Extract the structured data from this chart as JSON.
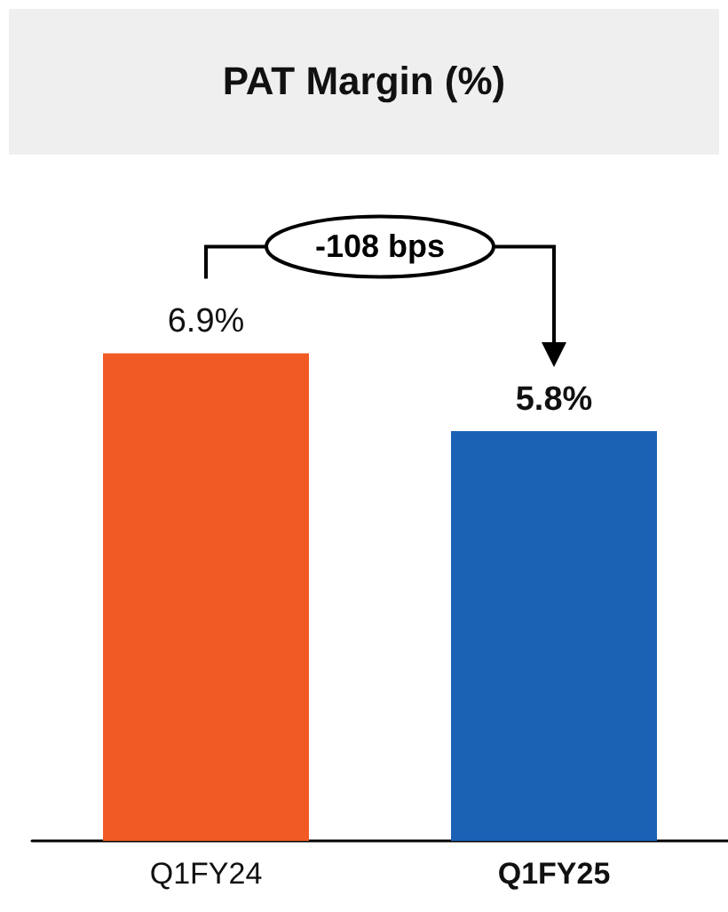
{
  "chart_data": {
    "type": "bar",
    "title": "PAT Margin (%)",
    "categories": [
      "Q1FY24",
      "Q1FY25"
    ],
    "values": [
      6.9,
      5.8
    ],
    "colors": [
      "#f15a24",
      "#1b62b5"
    ],
    "value_labels": [
      "6.9%",
      "5.8%"
    ],
    "annotations": [
      "-108 bps"
    ]
  }
}
